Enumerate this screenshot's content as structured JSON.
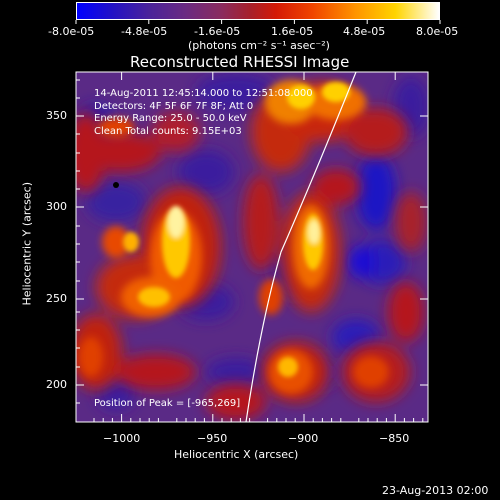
{
  "colorbar": {
    "tick_labels": [
      "-8.0e-05",
      "-4.8e-05",
      "-1.6e-05",
      "1.6e-05",
      "4.8e-05",
      "8.0e-05"
    ],
    "units_label": "(photons cm⁻² s⁻¹ asec⁻²)",
    "range": [
      -8e-05,
      8e-05
    ],
    "colors": [
      "#0000ff",
      "#1a0dd0",
      "#3a1aa8",
      "#5b2a88",
      "#7a2e7a",
      "#9a1f3a",
      "#c40f0f",
      "#e84300",
      "#ff9a00",
      "#ffd800",
      "#ffffe0"
    ]
  },
  "title": "Reconstructed RHESSI Image",
  "info_lines": [
    "14-Aug-2011 12:45:14.000 to 12:51:08.000",
    "Detectors: 4F 5F 6F 7F 8F; Att 0",
    "Energy Range: 25.0 - 50.0 keV",
    "Clean    Total counts: 9.15E+03"
  ],
  "peak_text": "Position of Peak = [-965,269]",
  "x_axis": {
    "label": "Heliocentric X (arcsec)",
    "range": [
      -1025,
      -832
    ],
    "ticks": [
      -1000,
      -950,
      -900,
      -850
    ],
    "tick_labels": [
      "−1000",
      "−950",
      "−900",
      "−850"
    ]
  },
  "y_axis": {
    "label": "Heliocentric Y (arcsec)",
    "range": [
      180,
      371
    ],
    "ticks": [
      200,
      250,
      300,
      350
    ],
    "tick_labels": [
      "200",
      "250",
      "300",
      "350"
    ]
  },
  "footer_date": "23-Aug-2013 02:00",
  "limb_color": "#ffffff"
}
